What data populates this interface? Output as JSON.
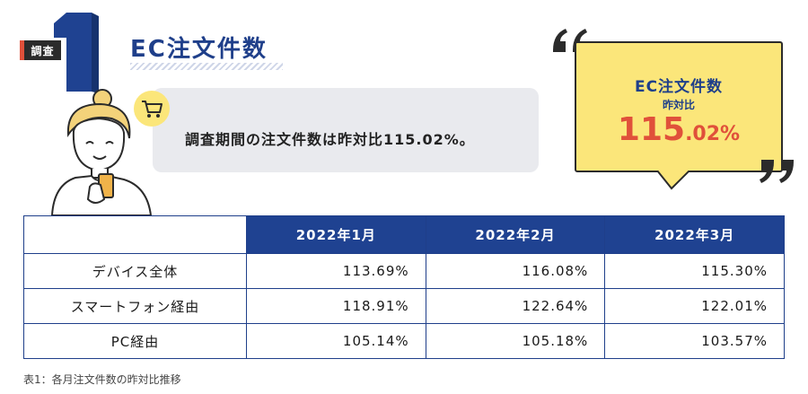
{
  "header": {
    "badge_label": "調査",
    "badge_number": "1",
    "title": "EC注文件数"
  },
  "speech": {
    "text": "調査期間の注文件数は昨対比115.02%。",
    "icon": "shopping-cart-icon"
  },
  "callout": {
    "title": "EC注文件数",
    "subtitle": "昨対比",
    "value_main": "115",
    "value_decimal": ".02%"
  },
  "table": {
    "columns": [
      "2022年1月",
      "2022年2月",
      "2022年3月"
    ],
    "rows": [
      {
        "label": "デバイス全体",
        "values": [
          "113.69%",
          "116.08%",
          "115.30%"
        ]
      },
      {
        "label": "スマートフォン経由",
        "values": [
          "118.91%",
          "122.64%",
          "122.01%"
        ]
      },
      {
        "label": "PC経由",
        "values": [
          "105.14%",
          "105.18%",
          "103.57%"
        ]
      }
    ]
  },
  "caption": "表1：各月注文件数の昨対比推移",
  "colors": {
    "navy": "#1f4291",
    "accent_red": "#e0503a",
    "callout_yellow": "#fbe67a",
    "bubble_gray": "#e9eaee"
  }
}
